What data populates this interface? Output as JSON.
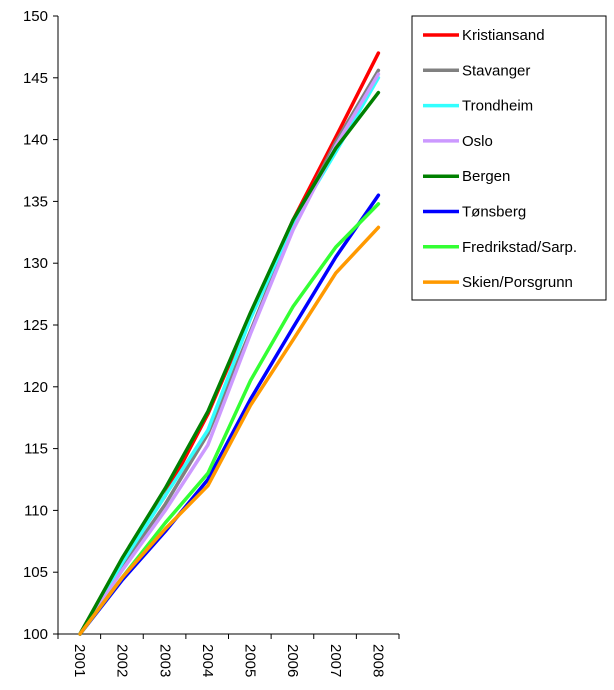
{
  "chart_data": {
    "type": "line",
    "x": [
      "2001",
      "2002",
      "2003",
      "2004",
      "2005",
      "2006",
      "2007",
      "2008"
    ],
    "ylim": [
      100,
      150
    ],
    "yticks": [
      100,
      105,
      110,
      115,
      120,
      125,
      130,
      135,
      140,
      145,
      150
    ],
    "grid": false,
    "legend_position": "top-right",
    "series": [
      {
        "name": "Kristiansand",
        "color": "#ff0000",
        "values": [
          100,
          106,
          111.2,
          117.8,
          125.8,
          133.5,
          140.2,
          147.0
        ]
      },
      {
        "name": "Stavanger",
        "color": "#808080",
        "values": [
          100,
          105.5,
          110.5,
          116.2,
          124.5,
          133.0,
          139.8,
          145.6
        ]
      },
      {
        "name": "Trondheim",
        "color": "#33ffff",
        "values": [
          100,
          105.8,
          111.2,
          116.5,
          125.5,
          133.2,
          139.0,
          145.0
        ]
      },
      {
        "name": "Oslo",
        "color": "#cc99ff",
        "values": [
          100,
          105.2,
          110.0,
          115.3,
          124.3,
          132.7,
          139.5,
          145.3
        ]
      },
      {
        "name": "Bergen",
        "color": "#008000",
        "values": [
          100,
          106.2,
          111.8,
          118.0,
          126.0,
          133.5,
          139.3,
          143.8
        ]
      },
      {
        "name": "Tønsberg",
        "color": "#0000ff",
        "values": [
          100,
          104.4,
          108.3,
          112.5,
          119.0,
          124.8,
          130.5,
          135.5
        ]
      },
      {
        "name": "Fredrikstad/Sarp.",
        "color": "#33ff33",
        "values": [
          100,
          104.6,
          109.0,
          113.0,
          120.5,
          126.5,
          131.3,
          134.8
        ]
      },
      {
        "name": "Skien/Porsgrunn",
        "color": "#ff9900",
        "values": [
          100,
          104.6,
          108.5,
          112.0,
          118.5,
          123.8,
          129.2,
          132.9
        ]
      }
    ]
  }
}
